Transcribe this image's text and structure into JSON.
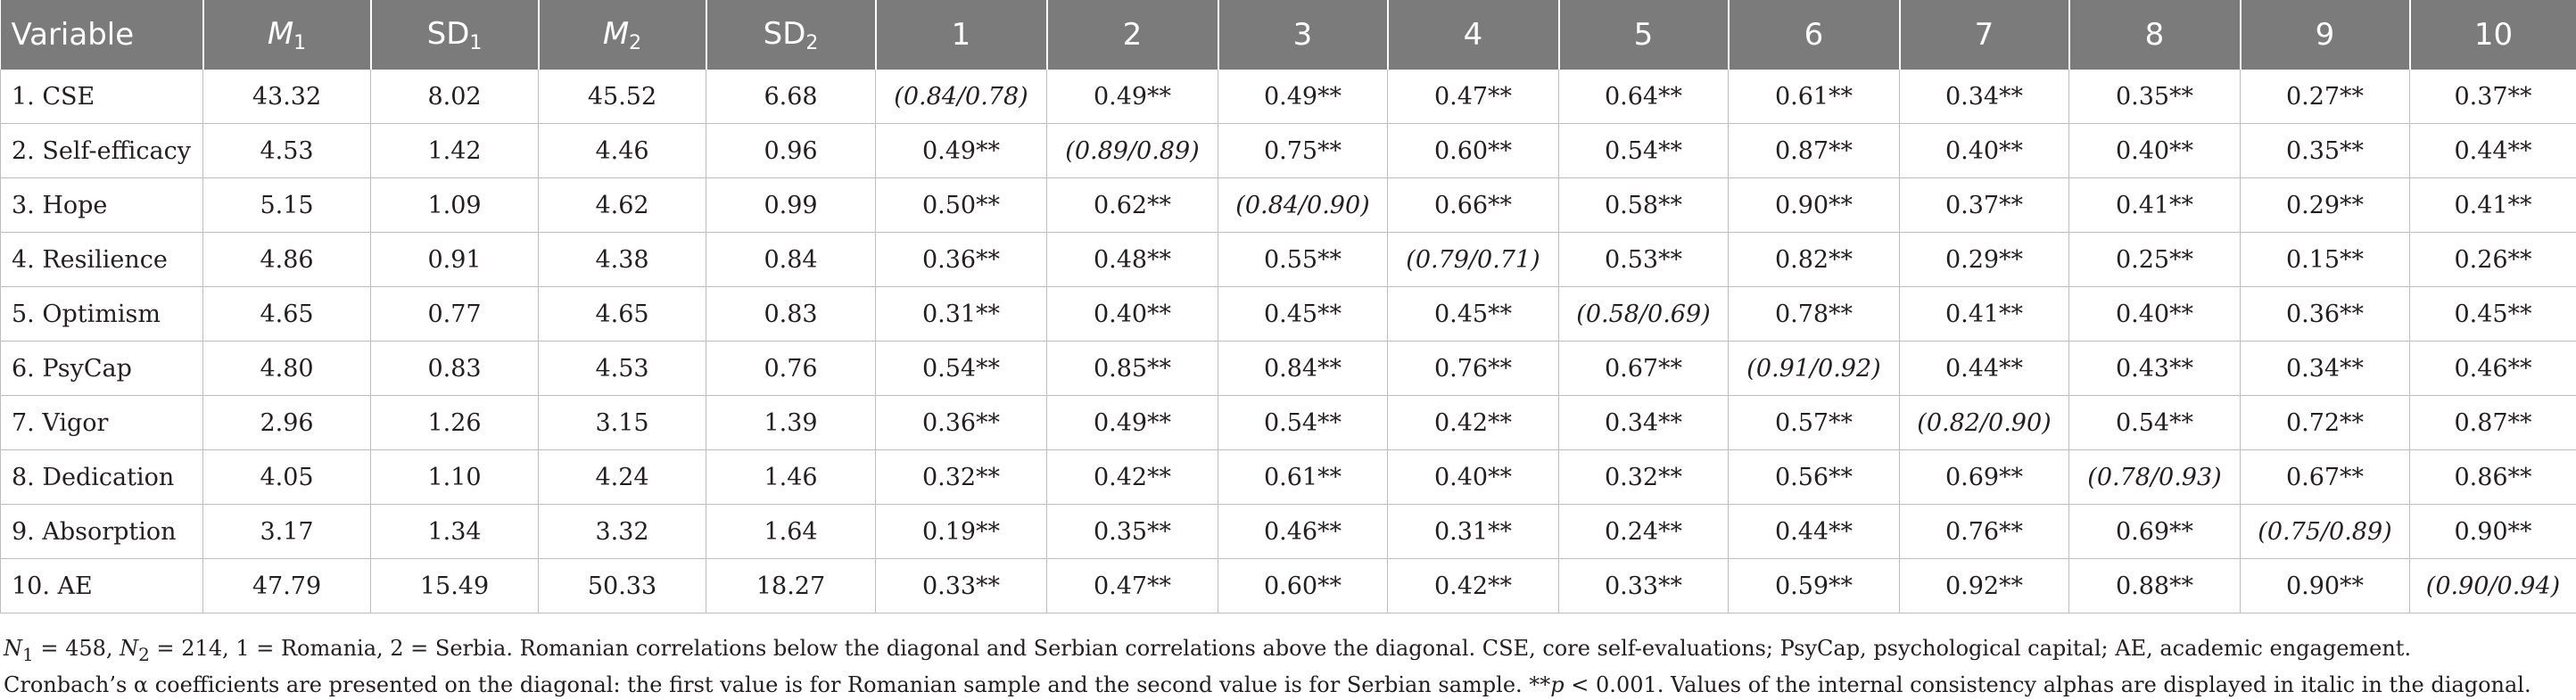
{
  "table": {
    "headers": [
      {
        "main": "Variable",
        "sub": "",
        "italic": false
      },
      {
        "main": "M",
        "sub": "1",
        "italic": true
      },
      {
        "main": "SD",
        "sub": "1",
        "italic": false
      },
      {
        "main": "M",
        "sub": "2",
        "italic": true
      },
      {
        "main": "SD",
        "sub": "2",
        "italic": false
      },
      {
        "main": "1",
        "sub": "",
        "italic": false
      },
      {
        "main": "2",
        "sub": "",
        "italic": false
      },
      {
        "main": "3",
        "sub": "",
        "italic": false
      },
      {
        "main": "4",
        "sub": "",
        "italic": false
      },
      {
        "main": "5",
        "sub": "",
        "italic": false
      },
      {
        "main": "6",
        "sub": "",
        "italic": false
      },
      {
        "main": "7",
        "sub": "",
        "italic": false
      },
      {
        "main": "8",
        "sub": "",
        "italic": false
      },
      {
        "main": "9",
        "sub": "",
        "italic": false
      },
      {
        "main": "10",
        "sub": "",
        "italic": false
      }
    ],
    "rows": [
      [
        "1. CSE",
        "43.32",
        "8.02",
        "45.52",
        "6.68",
        "(0.84/0.78)",
        "0.49**",
        "0.49**",
        "0.47**",
        "0.64**",
        "0.61**",
        "0.34**",
        "0.35**",
        "0.27**",
        "0.37**"
      ],
      [
        "2. Self-efficacy",
        "4.53",
        "1.42",
        "4.46",
        "0.96",
        "0.49**",
        "(0.89/0.89)",
        "0.75**",
        "0.60**",
        "0.54**",
        "0.87**",
        "0.40**",
        "0.40**",
        "0.35**",
        "0.44**"
      ],
      [
        "3. Hope",
        "5.15",
        "1.09",
        "4.62",
        "0.99",
        "0.50**",
        "0.62**",
        "(0.84/0.90)",
        "0.66**",
        "0.58**",
        "0.90**",
        "0.37**",
        "0.41**",
        "0.29**",
        "0.41**"
      ],
      [
        "4. Resilience",
        "4.86",
        "0.91",
        "4.38",
        "0.84",
        "0.36**",
        "0.48**",
        "0.55**",
        "(0.79/0.71)",
        "0.53**",
        "0.82**",
        "0.29**",
        "0.25**",
        "0.15**",
        "0.26**"
      ],
      [
        "5. Optimism",
        "4.65",
        "0.77",
        "4.65",
        "0.83",
        "0.31**",
        "0.40**",
        "0.45**",
        "0.45**",
        "(0.58/0.69)",
        "0.78**",
        "0.41**",
        "0.40**",
        "0.36**",
        "0.45**"
      ],
      [
        "6. PsyCap",
        "4.80",
        "0.83",
        "4.53",
        "0.76",
        "0.54**",
        "0.85**",
        "0.84**",
        "0.76**",
        "0.67**",
        "(0.91/0.92)",
        "0.44**",
        "0.43**",
        "0.34**",
        "0.46**"
      ],
      [
        "7. Vigor",
        "2.96",
        "1.26",
        "3.15",
        "1.39",
        "0.36**",
        "0.49**",
        "0.54**",
        "0.42**",
        "0.34**",
        "0.57**",
        "(0.82/0.90)",
        "0.54**",
        "0.72**",
        "0.87**"
      ],
      [
        "8. Dedication",
        "4.05",
        "1.10",
        "4.24",
        "1.46",
        "0.32**",
        "0.42**",
        "0.61**",
        "0.40**",
        "0.32**",
        "0.56**",
        "0.69**",
        "(0.78/0.93)",
        "0.67**",
        "0.86**"
      ],
      [
        "9. Absorption",
        "3.17",
        "1.34",
        "3.32",
        "1.64",
        "0.19**",
        "0.35**",
        "0.46**",
        "0.31**",
        "0.24**",
        "0.44**",
        "0.76**",
        "0.69**",
        "(0.75/0.89)",
        "0.90**"
      ],
      [
        "10. AE",
        "47.79",
        "15.49",
        "50.33",
        "18.27",
        "0.33**",
        "0.47**",
        "0.60**",
        "0.42**",
        "0.33**",
        "0.59**",
        "0.92**",
        "0.88**",
        "0.90**",
        "(0.90/0.94)"
      ]
    ]
  },
  "footnote": {
    "n1_label": "N",
    "n1_sub": "1",
    "n1_value": " = 458, ",
    "n2_label": "N",
    "n2_sub": "2",
    "n2_value": " = 214, 1 = Romania, 2 = Serbia. Romanian correlations below the diagonal and Serbian correlations above the diagonal. CSE, core self-evaluations; PsyCap, psychological capital; AE, academic engagement. Cronbach’s α coefficients are presented on the diagonal: the first value is for Romanian sample and the second value is for Serbian sample. **",
    "p_label": "p",
    "p_value": " < 0.001. Values of the internal consistency alphas are displayed in italic in the diagonal."
  }
}
